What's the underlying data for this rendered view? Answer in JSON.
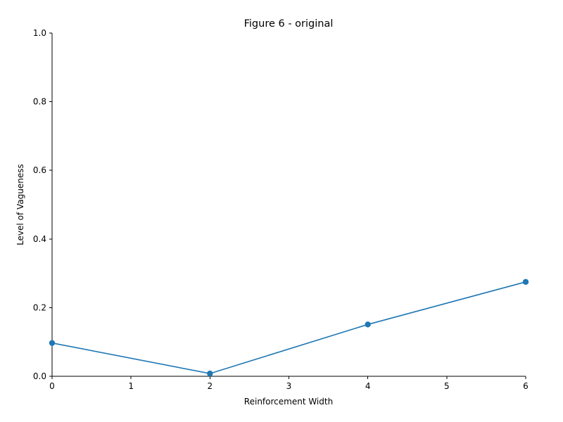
{
  "chart_data": {
    "type": "line",
    "title": "Figure 6 - original",
    "xlabel": "Reinforcement Width",
    "ylabel": "Level of Vagueness",
    "xlim": [
      0,
      6
    ],
    "ylim": [
      0,
      1
    ],
    "xticks": [
      0,
      1,
      2,
      3,
      4,
      5,
      6
    ],
    "yticks": [
      0.0,
      0.2,
      0.4,
      0.6,
      0.8,
      1.0
    ],
    "ytick_labels": [
      "0.0",
      "0.2",
      "0.4",
      "0.6",
      "0.8",
      "1.0"
    ],
    "grid": false,
    "series": [
      {
        "color": "#1f77b4",
        "marker": "circle",
        "x": [
          0,
          2,
          4,
          6
        ],
        "y": [
          0.097,
          0.008,
          0.151,
          0.275
        ]
      }
    ]
  }
}
